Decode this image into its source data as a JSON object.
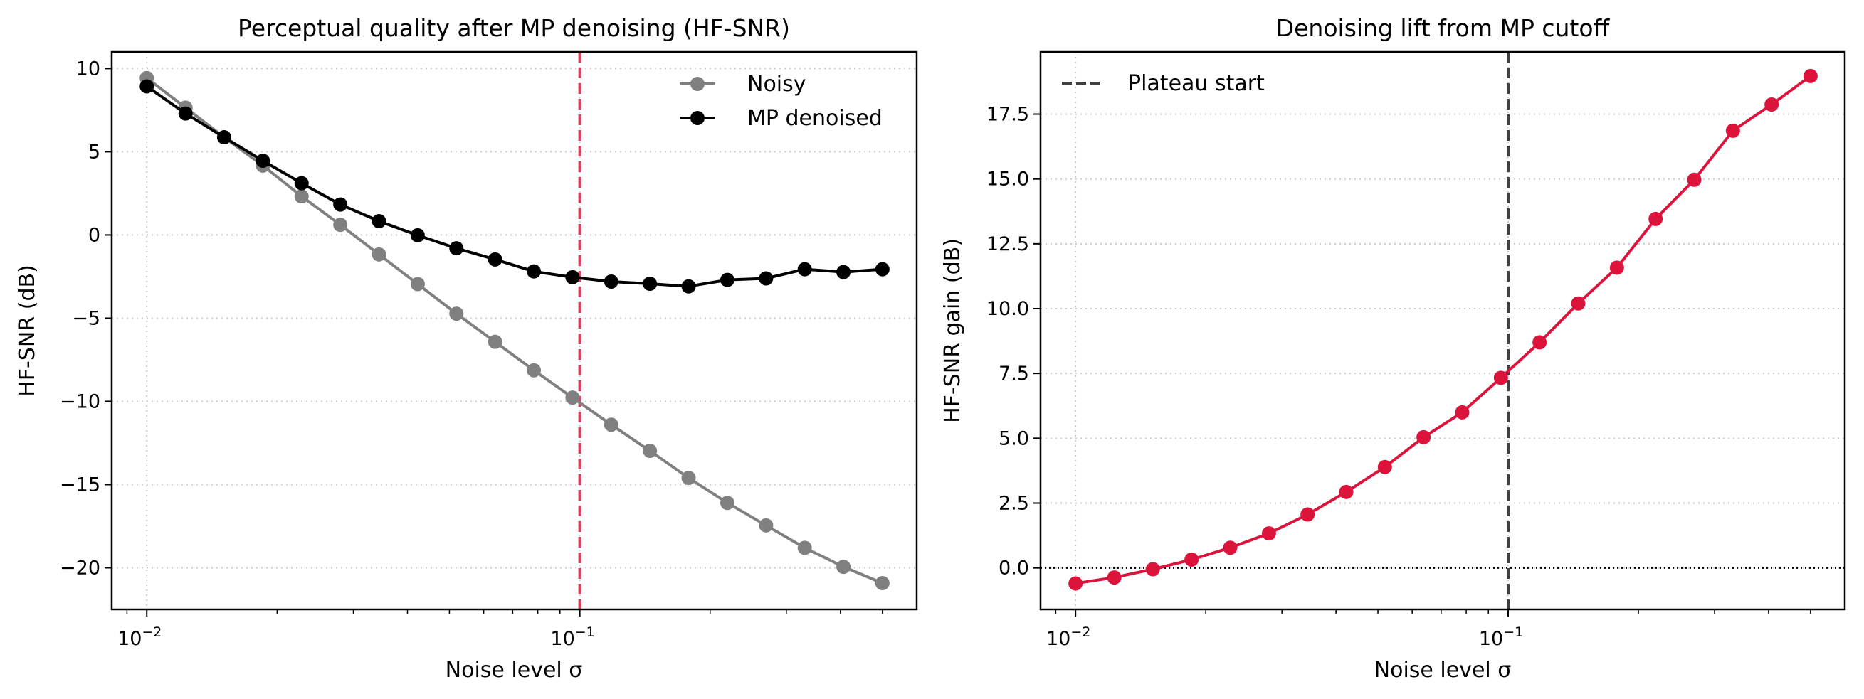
{
  "chart_data": [
    {
      "type": "line",
      "title": "Perceptual quality after MP denoising (HF-SNR)",
      "xlabel": "Noise level σ",
      "ylabel": "HF-SNR (dB)",
      "xscale": "log",
      "xlim": [
        0.0083,
        0.6
      ],
      "ylim": [
        -22.5,
        11.0
      ],
      "xticks": [
        {
          "value": 0.01,
          "base": "10",
          "exp": "−2"
        },
        {
          "value": 0.1,
          "base": "10",
          "exp": "−1"
        }
      ],
      "yticks": [
        {
          "value": 10,
          "label": "10"
        },
        {
          "value": 5,
          "label": "5"
        },
        {
          "value": 0,
          "label": "0"
        },
        {
          "value": -5,
          "label": "−5"
        },
        {
          "value": -10,
          "label": "−10"
        },
        {
          "value": -15,
          "label": "−15"
        },
        {
          "value": -20,
          "label": "−20"
        }
      ],
      "grid": true,
      "legend_position": "top-right",
      "x": [
        0.01,
        0.01229,
        0.01509,
        0.01854,
        0.02278,
        0.02799,
        0.03438,
        0.04224,
        0.05189,
        0.06375,
        0.07832,
        0.09622,
        0.1182,
        0.1452,
        0.1784,
        0.2192,
        0.2693,
        0.3308,
        0.4064,
        0.5
      ],
      "series": [
        {
          "name": "Noisy",
          "color": "#808080",
          "values": [
            9.43,
            7.65,
            5.87,
            4.17,
            2.32,
            0.61,
            -1.17,
            -2.95,
            -4.73,
            -6.42,
            -8.13,
            -9.77,
            -11.4,
            -12.97,
            -14.6,
            -16.1,
            -17.45,
            -18.8,
            -19.94,
            -20.92
          ]
        },
        {
          "name": "MP denoised",
          "color": "#000000",
          "values": [
            8.93,
            7.3,
            5.87,
            4.46,
            3.11,
            1.83,
            0.83,
            -0.02,
            -0.8,
            -1.47,
            -2.19,
            -2.54,
            -2.8,
            -2.93,
            -3.09,
            -2.7,
            -2.61,
            -2.06,
            -2.23,
            -2.06
          ]
        }
      ],
      "annotations": [
        {
          "type": "vline",
          "x": 0.1,
          "style": "dashed",
          "color": "#dc143c"
        }
      ]
    },
    {
      "type": "line",
      "title": "Denoising lift from MP cutoff",
      "xlabel": "Noise level σ",
      "ylabel": "HF-SNR gain (dB)",
      "xscale": "log",
      "xlim": [
        0.0083,
        0.6
      ],
      "ylim": [
        -1.6,
        19.9
      ],
      "xticks": [
        {
          "value": 0.01,
          "base": "10",
          "exp": "−2"
        },
        {
          "value": 0.1,
          "base": "10",
          "exp": "−1"
        }
      ],
      "yticks": [
        {
          "value": 0,
          "label": "0.0"
        },
        {
          "value": 2.5,
          "label": "2.5"
        },
        {
          "value": 5,
          "label": "5.0"
        },
        {
          "value": 7.5,
          "label": "7.5"
        },
        {
          "value": 10,
          "label": "10.0"
        },
        {
          "value": 12.5,
          "label": "12.5"
        },
        {
          "value": 15,
          "label": "15.0"
        },
        {
          "value": 17.5,
          "label": "17.5"
        }
      ],
      "grid": true,
      "legend_position": "top-left",
      "x": [
        0.01,
        0.01229,
        0.01509,
        0.01854,
        0.02278,
        0.02799,
        0.03438,
        0.04224,
        0.05189,
        0.06375,
        0.07832,
        0.09622,
        0.1182,
        0.1452,
        0.1784,
        0.2192,
        0.2693,
        0.3308,
        0.4064,
        0.5
      ],
      "series": [
        {
          "name": "HF-SNR gain",
          "color": "#dc143c",
          "values": [
            -0.6,
            -0.37,
            -0.05,
            0.32,
            0.78,
            1.33,
            2.06,
            2.93,
            3.89,
            5.04,
            6.0,
            7.33,
            8.7,
            10.2,
            11.58,
            13.46,
            14.97,
            16.86,
            17.87,
            18.97
          ]
        }
      ],
      "annotations": [
        {
          "type": "vline",
          "x": 0.1,
          "style": "dashed",
          "color": "#404040",
          "label": "Plateau start"
        },
        {
          "type": "hline",
          "y": 0,
          "style": "dotted",
          "color": "#000000"
        }
      ]
    }
  ]
}
